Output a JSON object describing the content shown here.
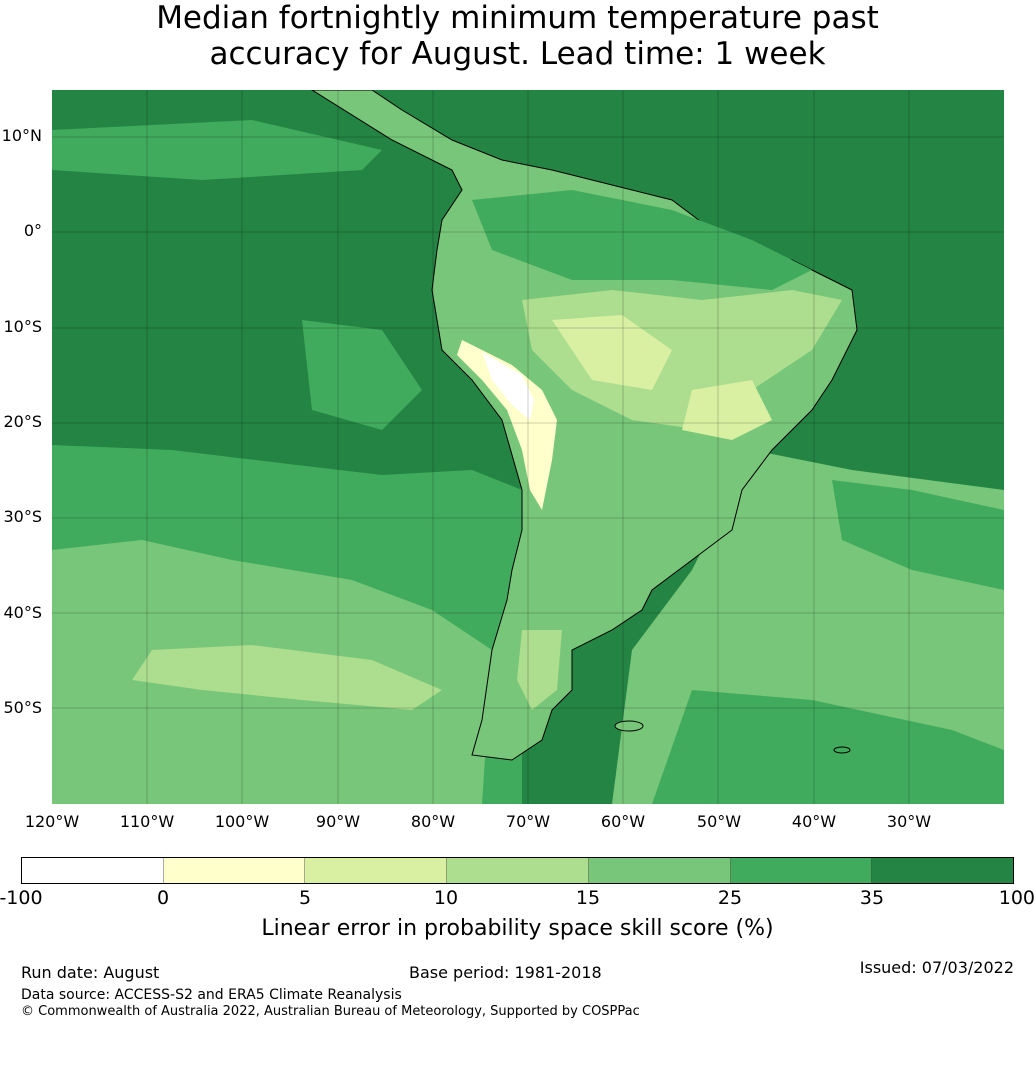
{
  "title": {
    "line1": "Median fortnightly minimum temperature past",
    "line2": "accuracy for August. Lead time: 1 week"
  },
  "map": {
    "lat_labels": [
      "10°N",
      "0°",
      "10°S",
      "20°S",
      "30°S",
      "40°S",
      "50°S"
    ],
    "lon_labels": [
      "120°W",
      "110°W",
      "100°W",
      "90°W",
      "80°W",
      "70°W",
      "60°W",
      "50°W",
      "40°W",
      "30°W"
    ]
  },
  "colorbar": {
    "ticks": [
      "-100",
      "0",
      "5",
      "10",
      "15",
      "25",
      "35",
      "100"
    ],
    "colors": [
      "#ffffff",
      "#ffffcc",
      "#d9f0a3",
      "#addd8e",
      "#78c679",
      "#41ab5d",
      "#238443"
    ],
    "label": "Linear error in probability space skill score (%)"
  },
  "footer": {
    "run_date": "Run date: August",
    "base_period": "Base period: 1981-2018",
    "issued": "Issued: 07/03/2022",
    "data_source": "Data source: ACCESS-S2 and ERA5 Climate Reanalysis",
    "copyright": "© Commonwealth of Australia 2022, Australian Bureau of Meteorology, Supported by COSPPac"
  }
}
